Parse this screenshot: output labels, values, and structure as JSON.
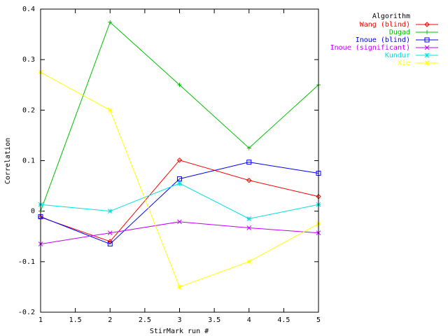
{
  "chart_data": {
    "type": "line",
    "title": "",
    "xlabel": "StirMark run #",
    "ylabel": "Correlation",
    "xlim": [
      1,
      5
    ],
    "ylim": [
      -0.2,
      0.4
    ],
    "x_ticks": [
      1,
      1.5,
      2,
      2.5,
      3,
      3.5,
      4,
      4.5,
      5
    ],
    "x_tick_labels": [
      "1",
      "1.5",
      "2",
      "2.5",
      "3",
      "3.5",
      "4",
      "4.5",
      "5"
    ],
    "y_ticks": [
      -0.2,
      -0.1,
      0,
      0.1,
      0.2,
      0.3,
      0.4
    ],
    "y_tick_labels": [
      "-0.2",
      "-0.1",
      "0",
      "0.1",
      "0.2",
      "0.3",
      "0.4"
    ],
    "grid": false,
    "legend_title": "Algorithm",
    "legend_position": "outside-right-top",
    "x": [
      1,
      2,
      3,
      4,
      5
    ],
    "series": [
      {
        "name": "Wang (blind)",
        "color": "#ff0000",
        "marker": "diamond",
        "values": [
          -0.012,
          -0.06,
          0.101,
          0.061,
          0.029
        ]
      },
      {
        "name": "Dugad",
        "color": "#00c000",
        "marker": "plus",
        "values": [
          0.0,
          0.374,
          0.25,
          0.125,
          0.25
        ]
      },
      {
        "name": "Inoue (blind)",
        "color": "#0000ff",
        "marker": "square",
        "values": [
          -0.011,
          -0.065,
          0.064,
          0.097,
          0.075
        ]
      },
      {
        "name": "Inoue (significant)",
        "color": "#c000ff",
        "marker": "cross",
        "values": [
          -0.065,
          -0.043,
          -0.021,
          -0.033,
          -0.043
        ]
      },
      {
        "name": "Kundur",
        "color": "#00e0e0",
        "marker": "star",
        "values": [
          0.013,
          0.0,
          0.055,
          -0.015,
          0.013
        ]
      },
      {
        "name": "Xie",
        "color": "#ffff00",
        "marker": "star",
        "values": [
          0.275,
          0.2,
          -0.15,
          -0.1,
          -0.025
        ]
      }
    ]
  }
}
